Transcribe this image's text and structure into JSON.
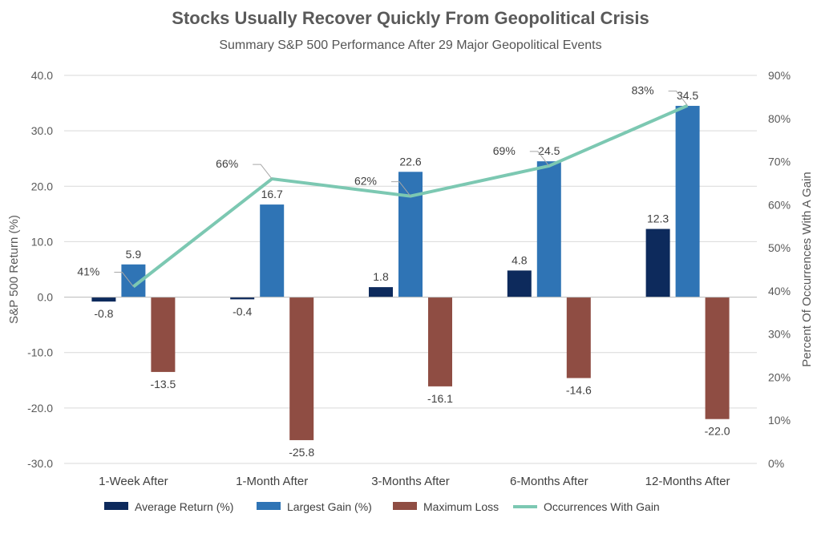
{
  "chart_data": {
    "type": "bar",
    "title": "Stocks Usually Recover Quickly From Geopolitical Crisis",
    "subtitle": "Summary S&P 500 Performance After 29 Major Geopolitical Events",
    "ylabel": "S&P 500 Return (%)",
    "y2label": "Percent Of Occurrences With A Gain",
    "ylim": [
      -30,
      40
    ],
    "y2lim": [
      0,
      90
    ],
    "yticks": [
      "40.0",
      "30.0",
      "20.0",
      "10.0",
      "0.0",
      "-10.0",
      "-20.0",
      "-30.0"
    ],
    "y2ticks": [
      "90%",
      "80%",
      "70%",
      "60%",
      "50%",
      "40%",
      "30%",
      "20%",
      "10%",
      "0%"
    ],
    "categories": [
      "1-Week After",
      "1-Month After",
      "3-Months After",
      "6-Months After",
      "12-Months After"
    ],
    "series": [
      {
        "name": "Average Return (%)",
        "type": "bar",
        "color": "#0d2a5c",
        "values": [
          -0.8,
          -0.4,
          1.8,
          4.8,
          12.3
        ],
        "labels": [
          "-0.8",
          "-0.4",
          "1.8",
          "4.8",
          "12.3"
        ]
      },
      {
        "name": "Largest Gain (%)",
        "type": "bar",
        "color": "#2f74b5",
        "values": [
          5.9,
          16.7,
          22.6,
          24.5,
          34.5
        ],
        "labels": [
          "5.9",
          "16.7",
          "22.6",
          "24.5",
          "34.5"
        ]
      },
      {
        "name": "Maximum Loss",
        "type": "bar",
        "color": "#8f4d43",
        "values": [
          -13.5,
          -25.8,
          -16.1,
          -14.6,
          -22.0
        ],
        "labels": [
          "-13.5",
          "-25.8",
          "-16.1",
          "-14.6",
          "-22.0"
        ]
      },
      {
        "name": "Occurrences With Gain",
        "type": "line",
        "axis": "secondary",
        "color": "#7cc8b2",
        "values": [
          41,
          66,
          62,
          69,
          83
        ],
        "labels": [
          "41%",
          "66%",
          "62%",
          "69%",
          "83%"
        ]
      }
    ],
    "grid": true,
    "legend_position": "bottom"
  }
}
